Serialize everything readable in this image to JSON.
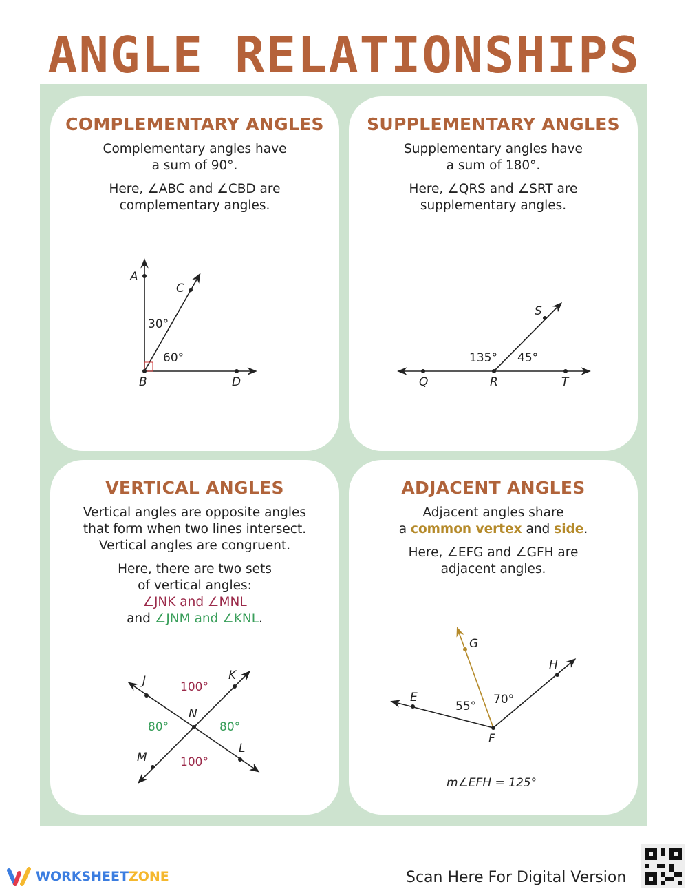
{
  "title": "ANGLE RELATIONSHIPS",
  "colors": {
    "title": "#b5623a",
    "heading": "#b0633a",
    "panel": "#cde3cf",
    "magenta": "#9b2a4a",
    "green": "#3a9f5b",
    "gold": "#b58a2a"
  },
  "complementary": {
    "heading": "COMPLEMENTARY ANGLES",
    "line1": "Complementary angles have",
    "line2": "a sum of 90°.",
    "line3": "Here, ∠ABC and ∠CBD are",
    "line4": "complementary angles.",
    "labels": {
      "A": "A",
      "B": "B",
      "C": "C",
      "D": "D",
      "a1": "30°",
      "a2": "60°"
    }
  },
  "supplementary": {
    "heading": "SUPPLEMENTARY ANGLES",
    "line1": "Supplementary angles have",
    "line2": "a sum of 180°.",
    "line3": "Here, ∠QRS and ∠SRT are",
    "line4": "supplementary angles.",
    "labels": {
      "Q": "Q",
      "R": "R",
      "S": "S",
      "T": "T",
      "a1": "135°",
      "a2": "45°"
    }
  },
  "vertical": {
    "heading": "VERTICAL ANGLES",
    "line1": "Vertical angles are opposite angles",
    "line2": "that form when two lines intersect.",
    "line3": "Vertical angles are congruent.",
    "line4": "Here, there are two sets",
    "line5": "of vertical angles:",
    "set1": "∠JNK and ∠MNL",
    "and": "and",
    "set2": "∠JNM and ∠KNL",
    "labels": {
      "J": "J",
      "K": "K",
      "L": "L",
      "M": "M",
      "N": "N",
      "top": "100°",
      "left": "80°",
      "right": "80°",
      "bottom": "100°"
    }
  },
  "adjacent": {
    "heading": "ADJACENT ANGLES",
    "line1": "Adjacent angles share",
    "a": "a",
    "common_vertex": "common vertex",
    "and": "and",
    "side": "side",
    "line3": "Here, ∠EFG and ∠GFH are",
    "line4": "adjacent angles.",
    "labels": {
      "E": "E",
      "F": "F",
      "G": "G",
      "H": "H",
      "a1": "55°",
      "a2": "70°"
    },
    "measure": "m∠EFH = 125°"
  },
  "footer": {
    "brand1": "WORKSHEET",
    "brand2": "ZONE",
    "scan": "Scan Here For Digital Version"
  }
}
